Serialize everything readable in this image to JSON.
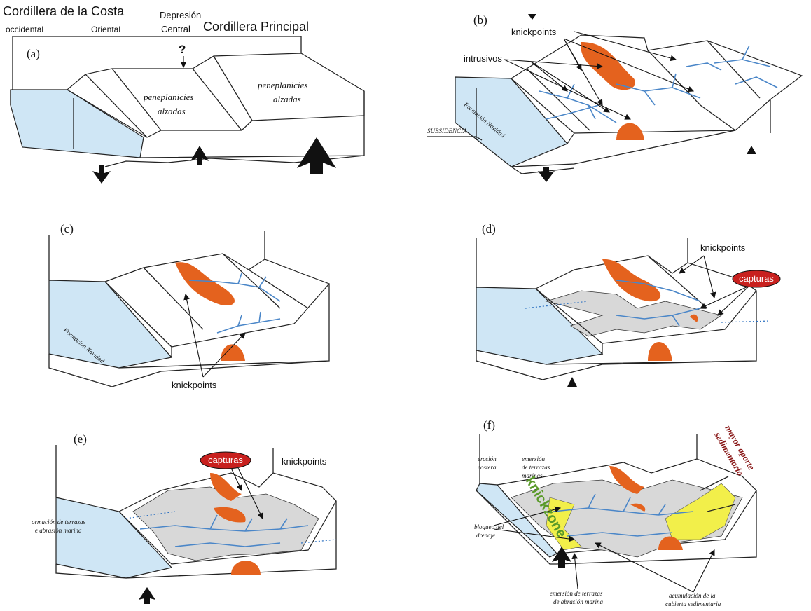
{
  "panels": [
    {
      "label": "(a)",
      "texts": [
        "Cordillera de la Costa",
        "occidental",
        "Oriental",
        "Depresión",
        "Central",
        "Cordillera Principal",
        "?",
        "peneplanicies",
        "alzadas",
        "peneplanicies",
        "alzadas"
      ]
    },
    {
      "label": "(b)",
      "texts": [
        "knickpoints",
        "intrusivos",
        "SUBSIDENCIA",
        "Formación Navidad"
      ]
    },
    {
      "label": "(c)",
      "texts": [
        "Formación Navidad",
        "knickpoints"
      ]
    },
    {
      "label": "(d)",
      "texts": [
        "knickpoints",
        "capturas"
      ]
    },
    {
      "label": "(e)",
      "texts": [
        "capturas",
        "knickpoints",
        "ormación de terrazas",
        "e abrasión marina"
      ]
    },
    {
      "label": "(f)",
      "texts": [
        "erosión",
        "costera",
        "emersión",
        "de terrazas",
        "marinas",
        "mayor aporte",
        "sedimentario",
        "knickzone",
        "bloqueo del",
        "drenaje",
        "emersión de terrazas",
        "de abrasión marina",
        "acumulación de la",
        "cubierta sedimentaria"
      ]
    }
  ]
}
